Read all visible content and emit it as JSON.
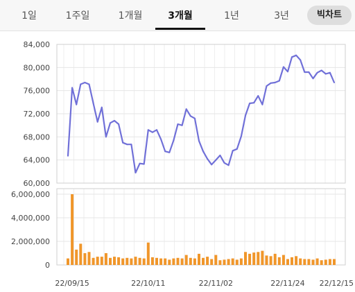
{
  "tabs": {
    "items": [
      {
        "label": "1일"
      },
      {
        "label": "1주일"
      },
      {
        "label": "1개월"
      },
      {
        "label": "3개월"
      },
      {
        "label": "1년"
      },
      {
        "label": "3년"
      }
    ],
    "active_index": 3,
    "chart_toggle_label": "빅차트"
  },
  "chart_data": [
    {
      "type": "line",
      "color": "#7070d8",
      "ylim": [
        60000,
        84000
      ],
      "y_ticks": [
        "84,000",
        "80,000",
        "76,000",
        "72,000",
        "68,000",
        "64,000",
        "60,000"
      ],
      "x_ticks": [
        "22/09/15",
        "22/10/11",
        "22/11/02",
        "22/11/24",
        "22/12/15"
      ],
      "x_tick_positions": [
        1,
        19,
        35,
        52,
        66
      ],
      "values": [
        64700,
        76500,
        73600,
        77100,
        77400,
        77100,
        73800,
        70600,
        73100,
        68000,
        70400,
        70800,
        70200,
        67000,
        66700,
        66700,
        61800,
        63400,
        63300,
        69200,
        68800,
        69200,
        67600,
        65500,
        65300,
        67400,
        70200,
        70000,
        72800,
        71600,
        71200,
        67300,
        65500,
        64200,
        63200,
        64000,
        64800,
        63500,
        63100,
        65600,
        65900,
        68100,
        71700,
        73800,
        73900,
        75100,
        73600,
        76800,
        77300,
        77400,
        77700,
        80100,
        79300,
        81800,
        82100,
        81300,
        79200,
        79200,
        78100,
        79100,
        79500,
        78900,
        79100,
        77400
      ]
    },
    {
      "type": "bar",
      "color": "#f0962a",
      "ylim": [
        0,
        6000000
      ],
      "y_ticks": [
        "6,000,000",
        "4,000,000",
        "2,000,000",
        "0"
      ],
      "values": [
        550000,
        6000000,
        1300000,
        1800000,
        1000000,
        1100000,
        600000,
        700000,
        700000,
        1000000,
        600000,
        700000,
        650000,
        550000,
        600000,
        550000,
        700000,
        600000,
        550000,
        1900000,
        650000,
        600000,
        550000,
        550000,
        450000,
        550000,
        600000,
        550000,
        850000,
        600000,
        550000,
        950000,
        600000,
        700000,
        500000,
        850000,
        400000,
        450000,
        500000,
        550000,
        450000,
        550000,
        1100000,
        950000,
        1050000,
        1100000,
        1200000,
        800000,
        750000,
        950000,
        650000,
        850000,
        500000,
        650000,
        750000,
        550000,
        500000,
        500000,
        450000,
        550000,
        400000,
        450000,
        500000,
        500000
      ]
    }
  ]
}
